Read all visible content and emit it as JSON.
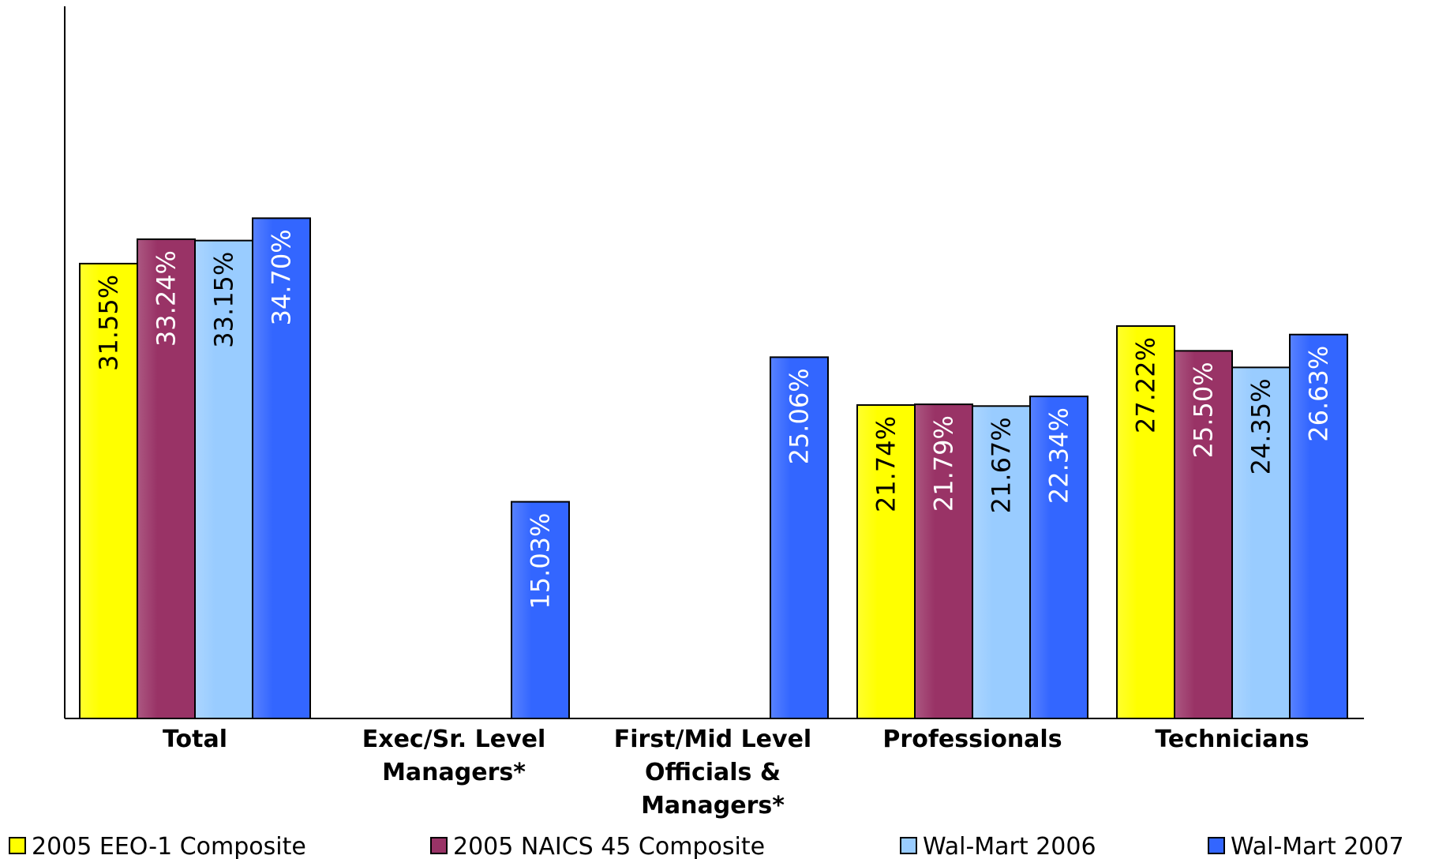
{
  "chart_data": {
    "type": "bar",
    "categories": [
      [
        "Total"
      ],
      [
        "Exec/Sr. Level",
        "Managers*"
      ],
      [
        "First/Mid Level",
        "Officials &",
        "Managers*"
      ],
      [
        "Professionals"
      ],
      [
        "Technicians"
      ]
    ],
    "series": [
      {
        "name": "2005 EEO-1 Composite",
        "color": "#ffff00",
        "values": [
          31.55,
          null,
          null,
          21.74,
          27.22
        ],
        "labels": [
          "31.55%",
          "",
          "",
          "21.74%",
          "27.22%"
        ],
        "label_color": "#000000"
      },
      {
        "name": "2005 NAICS 45 Composite",
        "color": "#993366",
        "values": [
          33.24,
          null,
          null,
          21.79,
          25.5
        ],
        "labels": [
          "33.24%",
          "",
          "",
          "21.79%",
          "25.50%"
        ],
        "label_color": "#ffffff"
      },
      {
        "name": "Wal-Mart 2006",
        "color": "#99ccff",
        "values": [
          33.15,
          null,
          null,
          21.67,
          24.35
        ],
        "labels": [
          "33.15%",
          "",
          "",
          "21.67%",
          "24.35%"
        ],
        "label_color": "#000000"
      },
      {
        "name": "Wal-Mart 2007",
        "color": "#3366ff",
        "values": [
          34.7,
          15.03,
          25.06,
          22.34,
          26.63
        ],
        "labels": [
          "34.70%",
          "15.03%",
          "25.06%",
          "22.34%",
          "26.63%"
        ],
        "label_color": "#ffffff"
      }
    ],
    "ylim": [
      0,
      45
    ],
    "grid": false,
    "legend_position": "bottom"
  }
}
